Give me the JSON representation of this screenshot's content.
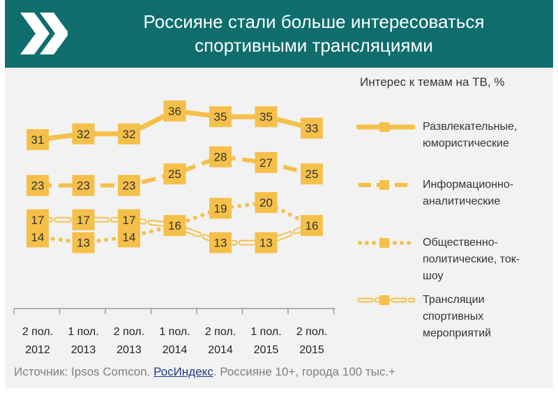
{
  "title": {
    "line1": "Россияне стали больше интересоваться",
    "line2": "спортивными трансляциями"
  },
  "colors": {
    "header": "#0f6e6d",
    "series": "#f5c04a",
    "background": "#f2f2f2"
  },
  "legend_title": "Интерес к темам на ТВ, %",
  "source": {
    "prefix": "Источник: Ipsos Comcon. ",
    "link": "РосИндекс",
    "suffix": ". Россияне 10+, города 100 тыс.+"
  },
  "chart_data": {
    "type": "line",
    "title": "Интерес к темам на ТВ, %",
    "categories": [
      [
        "2 пол.",
        "2012"
      ],
      [
        "1 пол.",
        "2013"
      ],
      [
        "2 пол.",
        "2013"
      ],
      [
        "1 пол.",
        "2014"
      ],
      [
        "2 пол.",
        "2014"
      ],
      [
        "1 пол.",
        "2015"
      ],
      [
        "2 пол.",
        "2015"
      ]
    ],
    "series": [
      {
        "name": "Развлекательные, юмористические",
        "legend_lines": [
          "Развлекательные,",
          "юмористические"
        ],
        "style": "solid",
        "values": [
          31,
          32,
          32,
          36,
          35,
          35,
          33
        ]
      },
      {
        "name": "Информационно-аналитические",
        "legend_lines": [
          "Информационно-",
          "аналитические"
        ],
        "style": "dashed",
        "values": [
          23,
          23,
          23,
          25,
          28,
          27,
          25
        ]
      },
      {
        "name": "Общественно-политические, ток-шоу",
        "legend_lines": [
          "Общественно-",
          "политические,  ток-",
          "шоу"
        ],
        "style": "dotted",
        "values": [
          14,
          13,
          14,
          16,
          19,
          20,
          16
        ]
      },
      {
        "name": "Трансляции спортивных мероприятий",
        "legend_lines": [
          "Трансляции",
          "спортивных",
          "мероприятий"
        ],
        "style": "outline-dash",
        "values": [
          17,
          17,
          17,
          16,
          13,
          13,
          16
        ]
      }
    ]
  }
}
